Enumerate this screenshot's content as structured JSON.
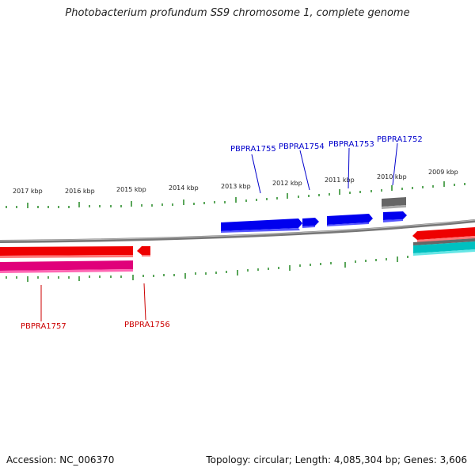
{
  "title": "Photobacterium profundum SS9 chromosome 1, complete genome",
  "footer": {
    "accession": "Accession: NC_006370",
    "summary": "Topology: circular; Length: 4,085,304 bp; Genes: 3,606"
  },
  "kbp_labels": [
    "2017 kbp",
    "2016 kbp",
    "2015 kbp",
    "2014 kbp",
    "2013 kbp",
    "2012 kbp",
    "2011 kbp",
    "2010 kbp",
    "2009 kbp"
  ],
  "genes": {
    "PBPRA1752": "PBPRA1752",
    "PBPRA1753": "PBPRA1753",
    "PBPRA1754": "PBPRA1754",
    "PBPRA1755": "PBPRA1755",
    "PBPRA1756": "PBPRA1756",
    "PBPRA1757": "PBPRA1757"
  },
  "colors": {
    "forward_gene": "#0000ee",
    "reverse_gene": "#ee0000",
    "label_forward": "#0000cc",
    "label_reverse": "#cc0000",
    "tick": "#228822",
    "backbone": "#888888",
    "magenta_track": "#e0007a",
    "cyan_track": "#00c0c0",
    "gray_feature": "#666666"
  }
}
